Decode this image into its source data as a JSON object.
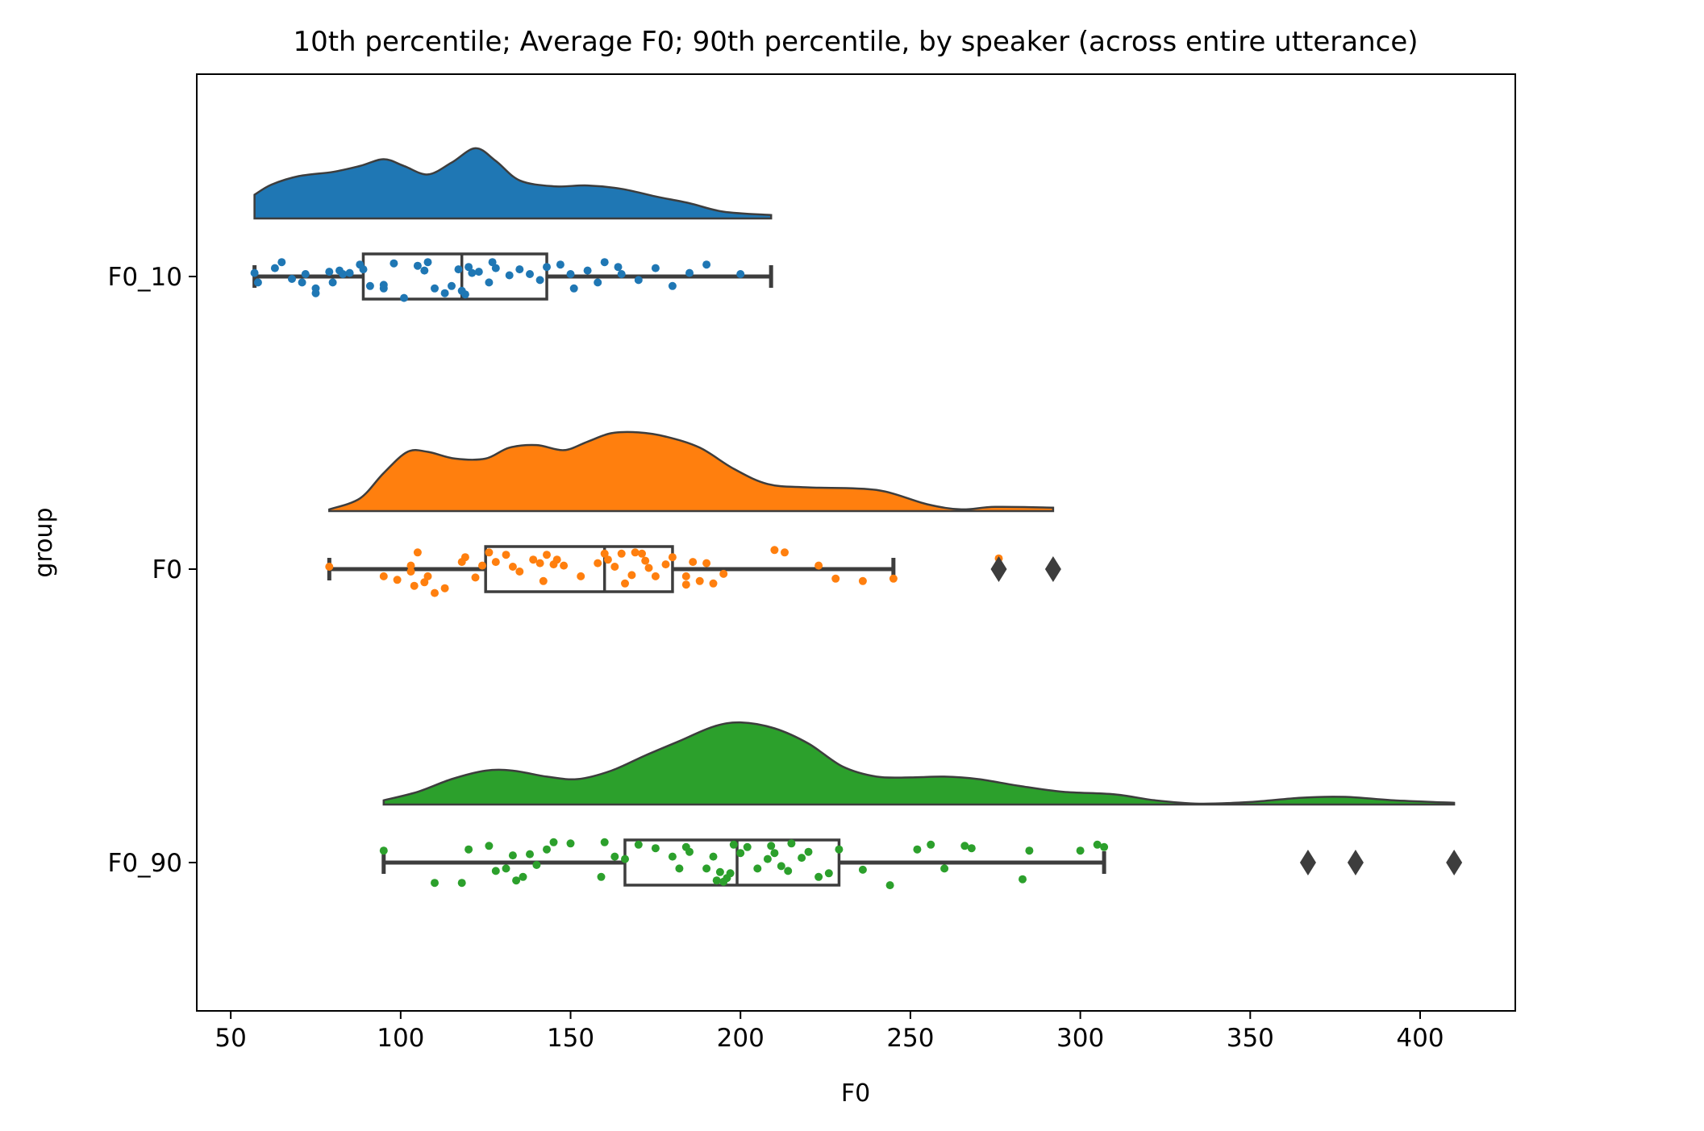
{
  "chart_data": {
    "type": "raincloud",
    "title": "10th percentile; Average F0; 90th percentile, by speaker (across entire utterance)",
    "xlabel": "F0",
    "ylabel": "group",
    "xlim": [
      40,
      428
    ],
    "xticks": [
      50,
      100,
      150,
      200,
      250,
      300,
      350,
      400
    ],
    "grid": false,
    "series": [
      {
        "name": "F0_10",
        "color": "#1f77b4",
        "box": {
          "whisker_low": 57,
          "q1": 89,
          "median": 118,
          "q3": 143,
          "whisker_high": 209
        },
        "outliers": [],
        "density": [
          [
            57,
            0.28
          ],
          [
            62,
            0.4
          ],
          [
            70,
            0.5
          ],
          [
            80,
            0.55
          ],
          [
            88,
            0.62
          ],
          [
            95,
            0.7
          ],
          [
            101,
            0.62
          ],
          [
            108,
            0.52
          ],
          [
            115,
            0.66
          ],
          [
            122,
            0.83
          ],
          [
            128,
            0.68
          ],
          [
            135,
            0.45
          ],
          [
            145,
            0.38
          ],
          [
            155,
            0.39
          ],
          [
            165,
            0.35
          ],
          [
            175,
            0.26
          ],
          [
            185,
            0.18
          ],
          [
            195,
            0.08
          ],
          [
            209,
            0.04
          ]
        ],
        "points": [
          [
            57,
            0.03
          ],
          [
            58,
            -0.05
          ],
          [
            63,
            0.07
          ],
          [
            65,
            0.12
          ],
          [
            68,
            -0.02
          ],
          [
            71,
            -0.05
          ],
          [
            72,
            0.02
          ],
          [
            75,
            -0.1
          ],
          [
            75,
            -0.14
          ],
          [
            79,
            0.04
          ],
          [
            80,
            -0.05
          ],
          [
            82,
            0.05
          ],
          [
            83,
            0.02
          ],
          [
            85,
            0.03
          ],
          [
            88,
            0.1
          ],
          [
            89,
            0.06
          ],
          [
            91,
            -0.08
          ],
          [
            95,
            -0.1
          ],
          [
            95,
            -0.07
          ],
          [
            98,
            0.11
          ],
          [
            101,
            -0.18
          ],
          [
            105,
            0.09
          ],
          [
            107,
            0.05
          ],
          [
            108,
            0.12
          ],
          [
            110,
            -0.1
          ],
          [
            113,
            -0.14
          ],
          [
            115,
            -0.08
          ],
          [
            117,
            0.06
          ],
          [
            118,
            -0.12
          ],
          [
            119,
            -0.15
          ],
          [
            120,
            0.08
          ],
          [
            121,
            0.03
          ],
          [
            123,
            0.04
          ],
          [
            126,
            -0.05
          ],
          [
            127,
            0.12
          ],
          [
            128,
            0.07
          ],
          [
            132,
            0.01
          ],
          [
            135,
            0.06
          ],
          [
            138,
            0.02
          ],
          [
            141,
            -0.03
          ],
          [
            143,
            0.08
          ],
          [
            147,
            0.1
          ],
          [
            150,
            0.02
          ],
          [
            151,
            -0.1
          ],
          [
            155,
            0.05
          ],
          [
            158,
            -0.05
          ],
          [
            160,
            0.12
          ],
          [
            164,
            0.08
          ],
          [
            165,
            0.02
          ],
          [
            170,
            -0.03
          ],
          [
            175,
            0.07
          ],
          [
            180,
            -0.08
          ],
          [
            185,
            0.03
          ],
          [
            190,
            0.1
          ],
          [
            200,
            0.02
          ]
        ]
      },
      {
        "name": "F0",
        "color": "#ff7f0e",
        "box": {
          "whisker_low": 79,
          "q1": 125,
          "median": 160,
          "q3": 180,
          "whisker_high": 245
        },
        "outliers": [
          276,
          292
        ],
        "density": [
          [
            79,
            0.02
          ],
          [
            88,
            0.15
          ],
          [
            95,
            0.45
          ],
          [
            102,
            0.7
          ],
          [
            108,
            0.7
          ],
          [
            116,
            0.62
          ],
          [
            125,
            0.62
          ],
          [
            132,
            0.75
          ],
          [
            140,
            0.78
          ],
          [
            148,
            0.72
          ],
          [
            155,
            0.82
          ],
          [
            162,
            0.92
          ],
          [
            170,
            0.93
          ],
          [
            178,
            0.88
          ],
          [
            188,
            0.75
          ],
          [
            198,
            0.5
          ],
          [
            208,
            0.32
          ],
          [
            220,
            0.28
          ],
          [
            240,
            0.25
          ],
          [
            255,
            0.08
          ],
          [
            265,
            0.02
          ],
          [
            275,
            0.05
          ],
          [
            292,
            0.04
          ]
        ],
        "points": [
          [
            79,
            0.02
          ],
          [
            95,
            -0.06
          ],
          [
            99,
            -0.09
          ],
          [
            103,
            0.03
          ],
          [
            103,
            -0.02
          ],
          [
            104,
            -0.14
          ],
          [
            105,
            0.14
          ],
          [
            107,
            -0.11
          ],
          [
            108,
            -0.06
          ],
          [
            110,
            -0.2
          ],
          [
            113,
            -0.16
          ],
          [
            118,
            0.06
          ],
          [
            119,
            0.1
          ],
          [
            122,
            -0.07
          ],
          [
            124,
            0.03
          ],
          [
            126,
            0.14
          ],
          [
            128,
            0.06
          ],
          [
            131,
            0.12
          ],
          [
            133,
            0.02
          ],
          [
            135,
            -0.02
          ],
          [
            139,
            0.08
          ],
          [
            141,
            0.05
          ],
          [
            142,
            -0.1
          ],
          [
            143,
            0.12
          ],
          [
            145,
            0.04
          ],
          [
            146,
            0.08
          ],
          [
            148,
            0.03
          ],
          [
            153,
            -0.06
          ],
          [
            158,
            0.05
          ],
          [
            160,
            0.13
          ],
          [
            161,
            0.08
          ],
          [
            163,
            0.02
          ],
          [
            165,
            0.13
          ],
          [
            166,
            -0.12
          ],
          [
            168,
            -0.05
          ],
          [
            169,
            0.14
          ],
          [
            171,
            0.13
          ],
          [
            172,
            0.07
          ],
          [
            173,
            0.01
          ],
          [
            175,
            -0.06
          ],
          [
            178,
            0.04
          ],
          [
            180,
            0.1
          ],
          [
            184,
            -0.06
          ],
          [
            184,
            -0.13
          ],
          [
            186,
            0.06
          ],
          [
            188,
            -0.1
          ],
          [
            190,
            0.05
          ],
          [
            192,
            -0.12
          ],
          [
            195,
            -0.04
          ],
          [
            210,
            0.16
          ],
          [
            213,
            0.14
          ],
          [
            223,
            0.03
          ],
          [
            228,
            -0.08
          ],
          [
            236,
            -0.1
          ],
          [
            245,
            -0.08
          ],
          [
            276,
            0.09
          ]
        ]
      },
      {
        "name": "F0_90",
        "color": "#2ca02c",
        "box": {
          "whisker_low": 95,
          "q1": 166,
          "median": 199,
          "q3": 229,
          "whisker_high": 307
        },
        "outliers": [
          367,
          381,
          410
        ],
        "density": [
          [
            95,
            0.05
          ],
          [
            105,
            0.15
          ],
          [
            115,
            0.3
          ],
          [
            125,
            0.4
          ],
          [
            133,
            0.4
          ],
          [
            143,
            0.33
          ],
          [
            152,
            0.3
          ],
          [
            162,
            0.4
          ],
          [
            172,
            0.58
          ],
          [
            182,
            0.75
          ],
          [
            192,
            0.92
          ],
          [
            200,
            0.97
          ],
          [
            210,
            0.9
          ],
          [
            220,
            0.72
          ],
          [
            230,
            0.45
          ],
          [
            240,
            0.33
          ],
          [
            250,
            0.32
          ],
          [
            260,
            0.33
          ],
          [
            270,
            0.3
          ],
          [
            282,
            0.22
          ],
          [
            295,
            0.15
          ],
          [
            310,
            0.12
          ],
          [
            322,
            0.05
          ],
          [
            335,
            0.01
          ],
          [
            350,
            0.03
          ],
          [
            365,
            0.08
          ],
          [
            378,
            0.09
          ],
          [
            392,
            0.05
          ],
          [
            410,
            0.02
          ]
        ],
        "points": [
          [
            95,
            0.1
          ],
          [
            110,
            -0.17
          ],
          [
            118,
            -0.17
          ],
          [
            120,
            0.11
          ],
          [
            126,
            0.14
          ],
          [
            128,
            -0.07
          ],
          [
            131,
            -0.05
          ],
          [
            133,
            0.06
          ],
          [
            134,
            -0.15
          ],
          [
            136,
            -0.12
          ],
          [
            138,
            0.07
          ],
          [
            140,
            -0.02
          ],
          [
            143,
            0.11
          ],
          [
            145,
            0.17
          ],
          [
            150,
            0.16
          ],
          [
            159,
            -0.12
          ],
          [
            160,
            0.17
          ],
          [
            163,
            0.05
          ],
          [
            166,
            0.03
          ],
          [
            170,
            0.15
          ],
          [
            175,
            0.12
          ],
          [
            180,
            0.05
          ],
          [
            182,
            -0.05
          ],
          [
            184,
            0.13
          ],
          [
            185,
            0.09
          ],
          [
            190,
            -0.05
          ],
          [
            192,
            0.05
          ],
          [
            193,
            -0.15
          ],
          [
            194,
            -0.08
          ],
          [
            195,
            -0.16
          ],
          [
            196,
            -0.13
          ],
          [
            197,
            -0.09
          ],
          [
            198,
            0.15
          ],
          [
            200,
            0.08
          ],
          [
            202,
            0.13
          ],
          [
            205,
            -0.05
          ],
          [
            208,
            0.03
          ],
          [
            209,
            0.14
          ],
          [
            210,
            0.08
          ],
          [
            212,
            -0.03
          ],
          [
            214,
            -0.07
          ],
          [
            215,
            0.16
          ],
          [
            218,
            0.04
          ],
          [
            220,
            0.09
          ],
          [
            223,
            -0.12
          ],
          [
            226,
            -0.09
          ],
          [
            229,
            0.11
          ],
          [
            236,
            -0.06
          ],
          [
            244,
            -0.19
          ],
          [
            252,
            0.11
          ],
          [
            256,
            0.15
          ],
          [
            260,
            -0.05
          ],
          [
            266,
            0.14
          ],
          [
            268,
            0.12
          ],
          [
            283,
            -0.14
          ],
          [
            285,
            0.1
          ],
          [
            300,
            0.1
          ],
          [
            305,
            0.15
          ],
          [
            307,
            0.13
          ]
        ]
      }
    ]
  }
}
